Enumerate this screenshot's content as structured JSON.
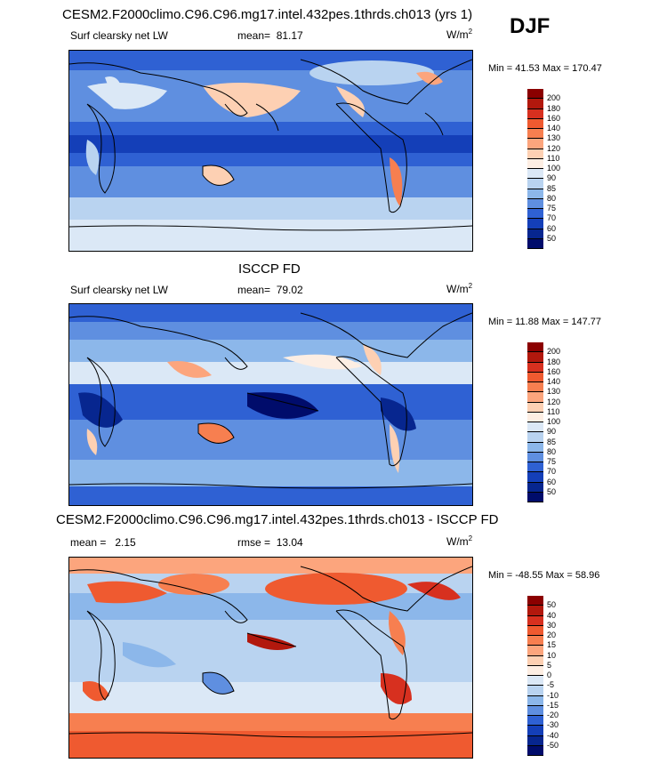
{
  "season": "DJF",
  "panels": [
    {
      "title": "CESM2.F2000climo.C96.C96.mg17.intel.432pes.1thrds.ch013 (yrs 1)",
      "variable": "Surf clearsky net LW",
      "stat1_label": "mean=",
      "stat1_value": "81.17",
      "stat2_label": "",
      "stat2_value": "",
      "units": "W/m",
      "units_sup": "2",
      "minmax": "Min =  41.53 Max = 170.47",
      "colorbar": {
        "levels": [
          "200",
          "180",
          "160",
          "140",
          "130",
          "120",
          "110",
          "100",
          "90",
          "85",
          "80",
          "75",
          "70",
          "60",
          "50"
        ],
        "colors": [
          "#8b0000",
          "#b2180d",
          "#d7301f",
          "#ef5a30",
          "#f77f50",
          "#fca57d",
          "#fdd0b3",
          "#fdeee3",
          "#dbe8f6",
          "#b9d3f0",
          "#8cb7ea",
          "#5f8fe0",
          "#2f61d3",
          "#143fb8",
          "#07268f",
          "#000c6b"
        ]
      }
    },
    {
      "title": "ISCCP FD",
      "variable": "Surf clearsky net LW",
      "stat1_label": "mean=",
      "stat1_value": "79.02",
      "stat2_label": "",
      "stat2_value": "",
      "units": "W/m",
      "units_sup": "2",
      "minmax": "Min =  11.88 Max = 147.77",
      "colorbar": {
        "levels": [
          "200",
          "180",
          "160",
          "140",
          "130",
          "120",
          "110",
          "100",
          "90",
          "85",
          "80",
          "75",
          "70",
          "60",
          "50"
        ],
        "colors": [
          "#8b0000",
          "#b2180d",
          "#d7301f",
          "#ef5a30",
          "#f77f50",
          "#fca57d",
          "#fdd0b3",
          "#fdeee3",
          "#dbe8f6",
          "#b9d3f0",
          "#8cb7ea",
          "#5f8fe0",
          "#2f61d3",
          "#143fb8",
          "#07268f",
          "#000c6b"
        ]
      }
    },
    {
      "title": "CESM2.F2000climo.C96.C96.mg17.intel.432pes.1thrds.ch013 - ISCCP FD",
      "variable": "",
      "stat1_label": "mean =",
      "stat1_value": "2.15",
      "stat2_label": "rmse =",
      "stat2_value": "13.04",
      "units": "W/m",
      "units_sup": "2",
      "minmax": "Min = -48.55 Max =  58.96",
      "colorbar": {
        "levels": [
          "50",
          "40",
          "30",
          "20",
          "15",
          "10",
          "5",
          "0",
          "-5",
          "-10",
          "-15",
          "-20",
          "-30",
          "-40",
          "-50"
        ],
        "colors": [
          "#8b0000",
          "#b2180d",
          "#d7301f",
          "#ef5a30",
          "#f77f50",
          "#fca57d",
          "#fdd0b3",
          "#fdeee3",
          "#dbe8f6",
          "#b9d3f0",
          "#8cb7ea",
          "#5f8fe0",
          "#2f61d3",
          "#143fb8",
          "#07268f",
          "#000c6b"
        ]
      }
    }
  ]
}
